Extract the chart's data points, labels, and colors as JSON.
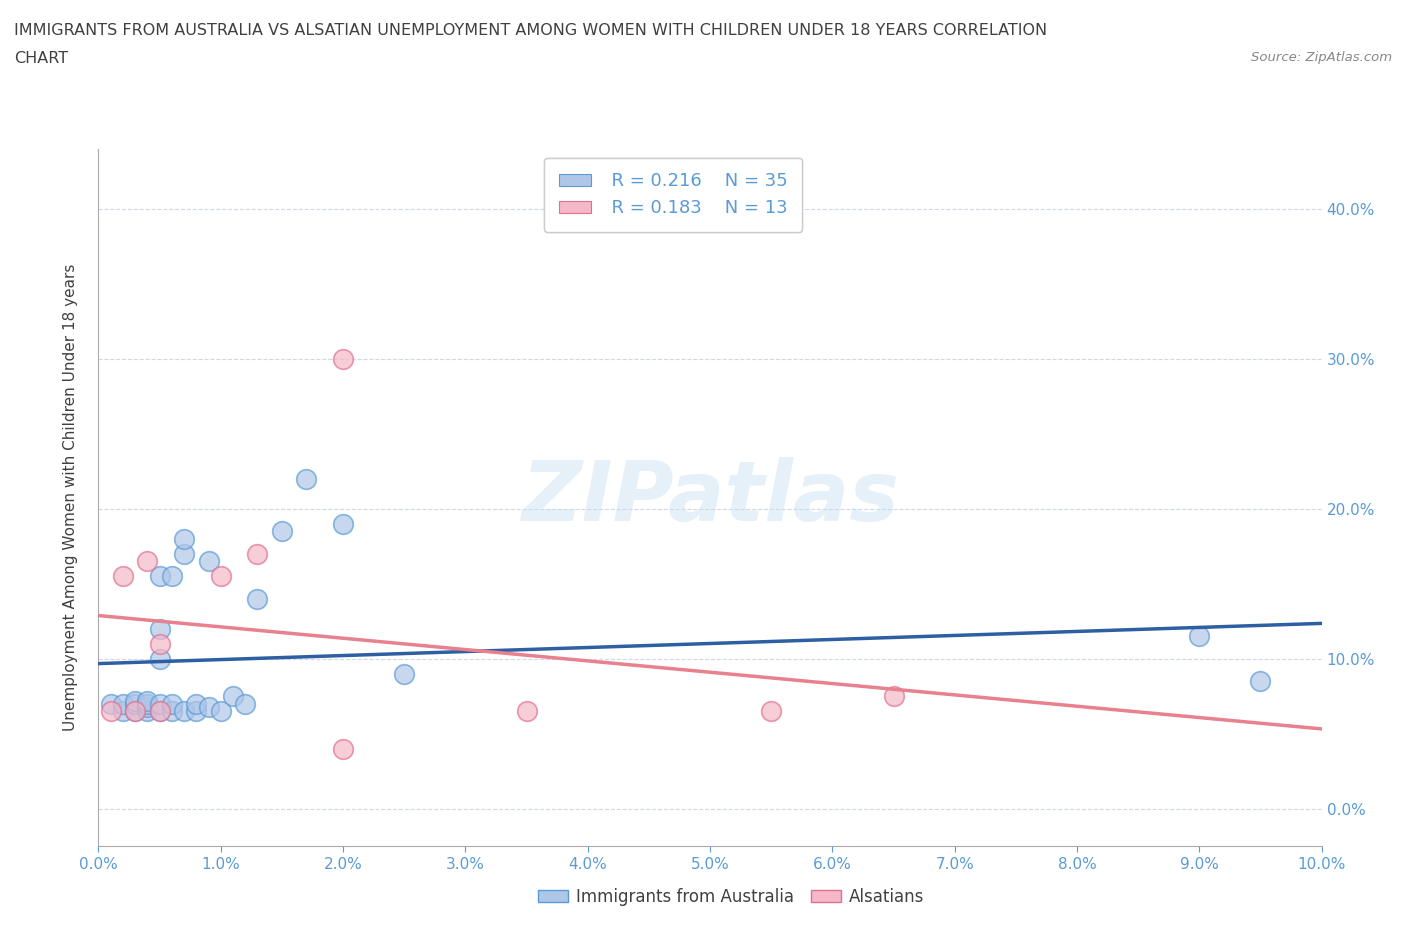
{
  "title_line1": "IMMIGRANTS FROM AUSTRALIA VS ALSATIAN UNEMPLOYMENT AMONG WOMEN WITH CHILDREN UNDER 18 YEARS CORRELATION",
  "title_line2": "CHART",
  "source": "Source: ZipAtlas.com",
  "ylabel": "Unemployment Among Women with Children Under 18 years",
  "blue_color": "#aec6e8",
  "pink_color": "#f5b8c8",
  "blue_edge_color": "#5b9bd5",
  "pink_edge_color": "#e07090",
  "blue_line_color": "#2e5fa3",
  "pink_line_color": "#e8808e",
  "legend_blue_R": "R = 0.216",
  "legend_blue_N": "N = 35",
  "legend_pink_R": "R = 0.183",
  "legend_pink_N": "N = 13",
  "blue_label": "Immigrants from Australia",
  "pink_label": "Alsatians",
  "watermark": "ZIPatlas",
  "xlim": [
    0.0,
    0.1
  ],
  "ylim": [
    -0.025,
    0.44
  ],
  "x_ticks": [
    0.0,
    0.01,
    0.02,
    0.03,
    0.04,
    0.05,
    0.06,
    0.07,
    0.08,
    0.09,
    0.1
  ],
  "y_ticks_right": [
    0.0,
    0.1,
    0.2,
    0.3,
    0.4
  ],
  "blue_x": [
    0.001,
    0.002,
    0.002,
    0.003,
    0.003,
    0.003,
    0.004,
    0.004,
    0.004,
    0.004,
    0.005,
    0.005,
    0.005,
    0.005,
    0.005,
    0.006,
    0.006,
    0.006,
    0.007,
    0.007,
    0.007,
    0.008,
    0.008,
    0.009,
    0.009,
    0.01,
    0.011,
    0.012,
    0.013,
    0.015,
    0.017,
    0.02,
    0.025,
    0.09,
    0.095
  ],
  "blue_y": [
    0.07,
    0.065,
    0.07,
    0.065,
    0.07,
    0.072,
    0.065,
    0.068,
    0.07,
    0.072,
    0.065,
    0.1,
    0.12,
    0.155,
    0.07,
    0.065,
    0.07,
    0.155,
    0.065,
    0.17,
    0.18,
    0.065,
    0.07,
    0.165,
    0.068,
    0.065,
    0.075,
    0.07,
    0.14,
    0.185,
    0.22,
    0.19,
    0.09,
    0.115,
    0.085
  ],
  "pink_x": [
    0.001,
    0.002,
    0.003,
    0.004,
    0.005,
    0.005,
    0.01,
    0.013,
    0.02,
    0.035,
    0.055,
    0.065,
    0.02
  ],
  "pink_y": [
    0.065,
    0.155,
    0.065,
    0.165,
    0.065,
    0.11,
    0.155,
    0.17,
    0.3,
    0.065,
    0.065,
    0.075,
    0.04
  ],
  "bg_color": "#ffffff",
  "title_color": "#404040",
  "axis_color": "#5b9bd5",
  "grid_color": "#d0d8e8",
  "source_color": "#888888"
}
